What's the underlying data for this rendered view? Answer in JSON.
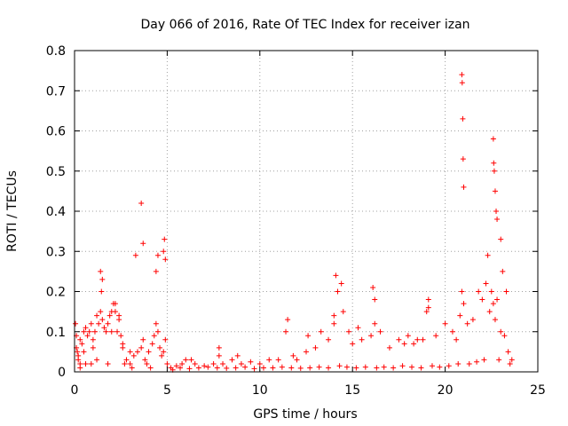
{
  "chart_data": {
    "type": "scatter",
    "title": "Day 066 of 2016, Rate Of TEC Index for receiver izan",
    "xlabel": "GPS time / hours",
    "ylabel": "ROTI / TECUs",
    "xlim": [
      0,
      25
    ],
    "ylim": [
      0,
      0.8
    ],
    "x_ticks": [
      "0",
      "5",
      "10",
      "15",
      "20",
      "25"
    ],
    "y_ticks": [
      "0",
      "0.1",
      "0.2",
      "0.3",
      "0.4",
      "0.5",
      "0.6",
      "0.7",
      "0.8"
    ],
    "x_tick_values": [
      0,
      5,
      10,
      15,
      20,
      25
    ],
    "y_tick_values": [
      0,
      0.1,
      0.2,
      0.3,
      0.4,
      0.5,
      0.6,
      0.7,
      0.8
    ],
    "grid": true,
    "marker": "+",
    "series": [
      {
        "color": "#ff0000",
        "x": [
          0.05,
          0.1,
          0.15,
          0.2,
          0.3,
          0.4,
          0.5,
          0.6,
          0.7,
          0.8,
          0.9,
          1.0,
          1.1,
          1.2,
          1.3,
          1.4,
          1.5,
          1.6,
          1.7,
          1.8,
          1.9,
          2.0,
          2.1,
          2.2,
          2.3,
          2.4,
          2.5,
          2.6,
          2.8,
          3.0,
          3.2,
          3.4,
          3.6,
          3.7,
          3.8,
          4.0,
          4.2,
          4.3,
          4.4,
          4.5,
          4.6,
          4.7,
          4.8,
          4.9,
          5.0,
          5.2,
          5.5,
          5.8,
          6.0,
          6.5,
          7.0,
          7.5,
          7.8,
          8.0,
          8.5,
          9.0,
          9.5,
          10.0,
          10.5,
          11.0,
          11.4,
          11.8,
          12.0,
          12.5,
          13.0,
          13.3,
          13.7,
          14.0,
          14.2,
          14.5,
          14.8,
          15.0,
          15.5,
          16.0,
          16.2,
          16.5,
          17.0,
          17.5,
          18.0,
          18.3,
          18.8,
          19.0,
          19.5,
          20.0,
          20.4,
          20.6,
          20.8,
          20.9,
          21.0,
          21.2,
          21.5,
          21.8,
          22.0,
          22.2,
          22.4,
          22.5,
          22.6,
          22.7,
          22.8,
          23.0,
          23.2,
          23.4,
          23.6,
          0.1,
          0.2,
          0.3,
          1.4,
          1.45,
          1.5,
          2.0,
          2.2,
          2.4,
          3.3,
          3.6,
          3.7,
          4.4,
          4.5,
          4.8,
          4.85,
          4.9,
          14.1,
          14.4,
          16.1,
          19.1,
          20.9,
          20.92,
          20.95,
          20.97,
          21.0,
          22.3,
          22.6,
          22.62,
          22.65,
          22.7,
          22.75,
          22.8,
          23.0,
          23.1,
          23.3,
          0.3,
          0.6,
          0.9,
          1.2,
          1.8,
          2.7,
          3.1,
          3.9,
          4.1,
          5.3,
          5.7,
          6.2,
          6.7,
          7.2,
          7.7,
          8.2,
          8.7,
          9.2,
          9.7,
          10.2,
          10.7,
          11.2,
          11.7,
          12.2,
          12.7,
          13.2,
          13.7,
          14.3,
          14.7,
          15.2,
          15.7,
          16.3,
          16.7,
          17.2,
          17.7,
          18.2,
          18.7,
          19.3,
          19.7,
          20.2,
          20.7,
          21.3,
          21.7,
          22.1,
          22.9,
          23.5,
          11.5,
          12.6,
          14.0,
          15.3,
          16.2,
          17.8,
          18.5,
          19.1,
          7.8,
          8.8,
          6.3,
          3.0,
          2.6,
          1.0,
          0.5
        ],
        "y": [
          0.12,
          0.09,
          0.05,
          0.03,
          0.08,
          0.07,
          0.1,
          0.11,
          0.09,
          0.1,
          0.12,
          0.08,
          0.1,
          0.14,
          0.12,
          0.15,
          0.13,
          0.11,
          0.1,
          0.12,
          0.14,
          0.1,
          0.17,
          0.15,
          0.1,
          0.13,
          0.09,
          0.06,
          0.03,
          0.02,
          0.04,
          0.05,
          0.06,
          0.08,
          0.03,
          0.05,
          0.07,
          0.09,
          0.12,
          0.1,
          0.06,
          0.04,
          0.05,
          0.08,
          0.02,
          0.01,
          0.015,
          0.02,
          0.03,
          0.02,
          0.015,
          0.02,
          0.04,
          0.02,
          0.03,
          0.02,
          0.025,
          0.02,
          0.03,
          0.03,
          0.1,
          0.04,
          0.03,
          0.05,
          0.06,
          0.1,
          0.08,
          0.12,
          0.2,
          0.15,
          0.1,
          0.07,
          0.08,
          0.09,
          0.18,
          0.1,
          0.06,
          0.08,
          0.09,
          0.07,
          0.08,
          0.15,
          0.09,
          0.12,
          0.1,
          0.08,
          0.14,
          0.2,
          0.17,
          0.12,
          0.13,
          0.2,
          0.18,
          0.22,
          0.15,
          0.2,
          0.17,
          0.13,
          0.18,
          0.1,
          0.09,
          0.05,
          0.03,
          0.06,
          0.04,
          0.02,
          0.25,
          0.2,
          0.23,
          0.15,
          0.17,
          0.14,
          0.29,
          0.42,
          0.32,
          0.25,
          0.29,
          0.3,
          0.33,
          0.28,
          0.24,
          0.22,
          0.21,
          0.18,
          0.74,
          0.72,
          0.63,
          0.53,
          0.46,
          0.29,
          0.58,
          0.52,
          0.5,
          0.45,
          0.4,
          0.38,
          0.33,
          0.25,
          0.2,
          0.01,
          0.02,
          0.02,
          0.03,
          0.02,
          0.02,
          0.01,
          0.02,
          0.01,
          0.005,
          0.01,
          0.008,
          0.01,
          0.012,
          0.01,
          0.009,
          0.01,
          0.012,
          0.008,
          0.01,
          0.01,
          0.012,
          0.01,
          0.009,
          0.01,
          0.012,
          0.01,
          0.015,
          0.012,
          0.01,
          0.012,
          0.01,
          0.012,
          0.01,
          0.015,
          0.012,
          0.01,
          0.015,
          0.012,
          0.015,
          0.02,
          0.02,
          0.025,
          0.03,
          0.03,
          0.02,
          0.13,
          0.09,
          0.14,
          0.11,
          0.12,
          0.07,
          0.08,
          0.16,
          0.06,
          0.04,
          0.03,
          0.05,
          0.07,
          0.06,
          0.05
        ]
      }
    ]
  }
}
